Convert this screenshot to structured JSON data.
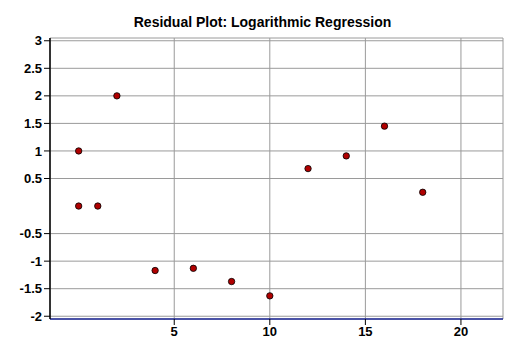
{
  "chart_data": {
    "type": "scatter",
    "title": "Residual Plot: Logarithmic Regression",
    "x": [
      0,
      0,
      1,
      2,
      4,
      6,
      8,
      10,
      12,
      14,
      16,
      18
    ],
    "values": [
      0,
      1,
      0,
      2,
      -1.17,
      -1.13,
      -1.37,
      -1.63,
      0.68,
      0.91,
      1.45,
      0.25
    ],
    "color": "#b00000",
    "marker": "circle",
    "xlim": [
      -1.5,
      22.2
    ],
    "ylim": [
      -2.05,
      3.05
    ],
    "xticks": [
      5,
      10,
      15,
      20
    ],
    "yticks": [
      -2,
      -1.5,
      -1,
      -0.5,
      0.5,
      1,
      1.5,
      2,
      2.5,
      3
    ],
    "grid": true
  }
}
